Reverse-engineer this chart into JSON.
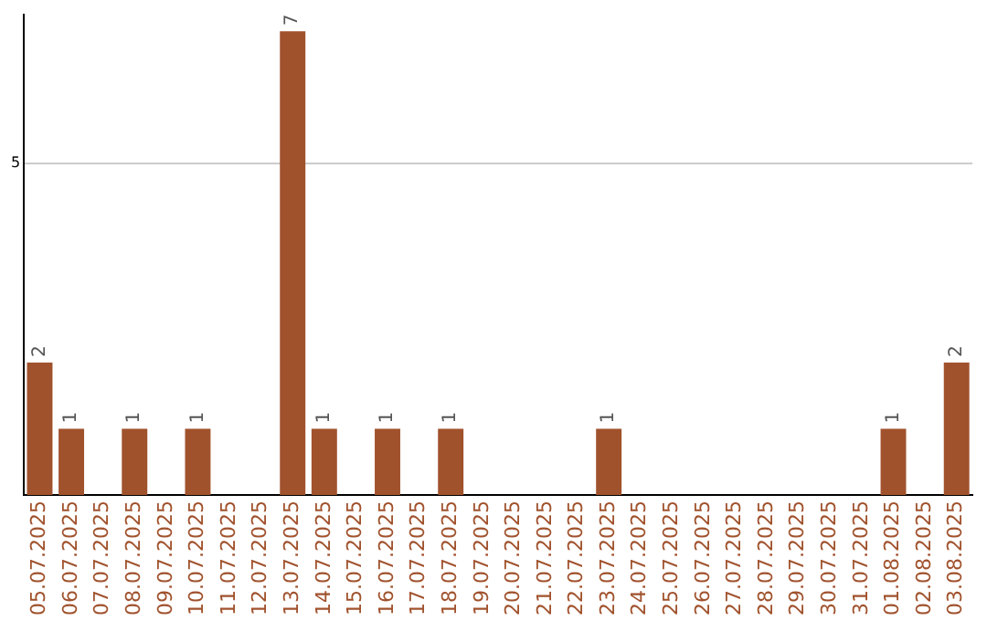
{
  "chart_data": {
    "type": "bar",
    "categories": [
      "05.07.2025",
      "06.07.2025",
      "07.07.2025",
      "08.07.2025",
      "09.07.2025",
      "10.07.2025",
      "11.07.2025",
      "12.07.2025",
      "13.07.2025",
      "14.07.2025",
      "15.07.2025",
      "16.07.2025",
      "17.07.2025",
      "18.07.2025",
      "19.07.2025",
      "20.07.2025",
      "21.07.2025",
      "22.07.2025",
      "23.07.2025",
      "24.07.2025",
      "25.07.2025",
      "26.07.2025",
      "27.07.2025",
      "28.07.2025",
      "29.07.2025",
      "30.07.2025",
      "31.07.2025",
      "01.08.2025",
      "02.08.2025",
      "03.08.2025"
    ],
    "values": [
      2,
      1,
      0,
      1,
      0,
      1,
      0,
      0,
      7,
      1,
      0,
      1,
      0,
      1,
      0,
      0,
      0,
      0,
      1,
      0,
      0,
      0,
      0,
      0,
      0,
      0,
      0,
      1,
      0,
      2
    ],
    "value_labels": [
      "2",
      "1",
      null,
      "1",
      null,
      "1",
      null,
      null,
      "7",
      "1",
      null,
      "1",
      null,
      "1",
      null,
      null,
      null,
      null,
      "1",
      null,
      null,
      null,
      null,
      null,
      null,
      null,
      null,
      "1",
      null,
      "2"
    ],
    "color": "#a0522d",
    "ylim": [
      0,
      7.25
    ],
    "yticks": [
      5
    ],
    "grid": "y",
    "legend": false
  }
}
